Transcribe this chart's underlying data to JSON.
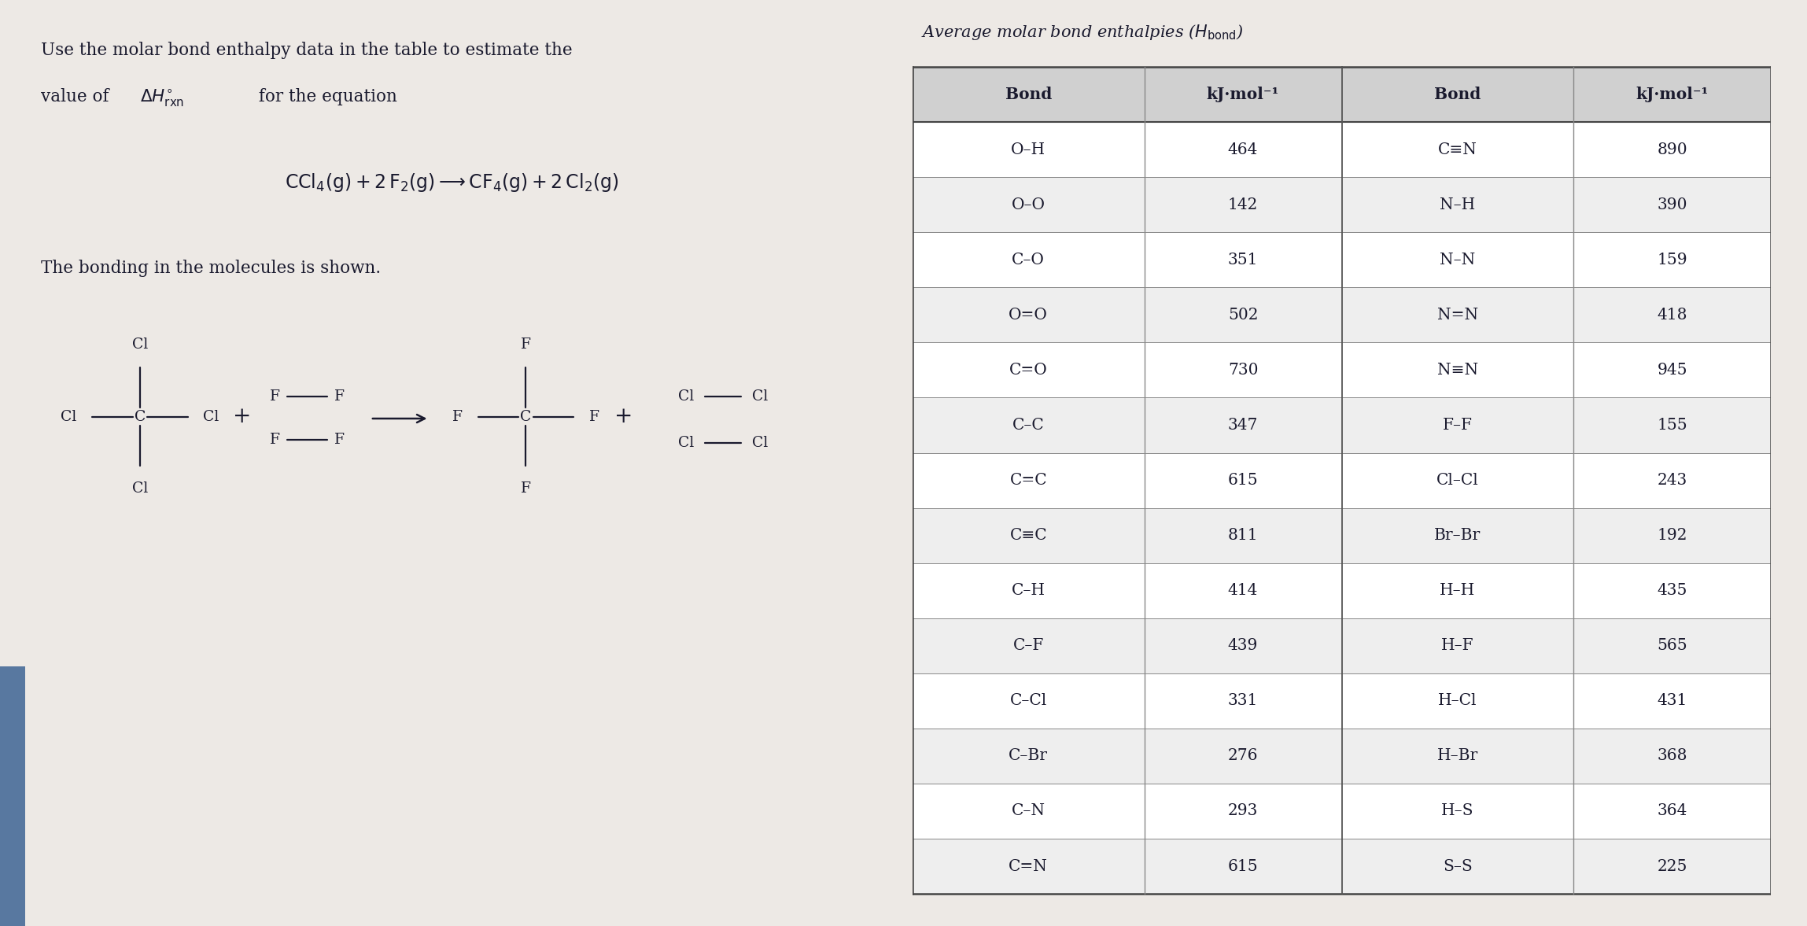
{
  "question_line1": "Use the molar bond enthalpy data in the table to estimate the",
  "question_line2": "value of ΔH°ᵣˣₙ for the equation",
  "bonding_text": "The bonding in the molecules is shown.",
  "table_title": "Average molar bond enthalpies (",
  "table_title2": "H",
  "table_title3": "bond",
  "table_title4": ")",
  "table_header_left": "Bond",
  "table_header_kj1": "kJ·mol⁻¹",
  "table_header_bond2": "Bond",
  "table_header_kj2": "kJ·mol⁻¹",
  "table_data_left": [
    [
      "O–H",
      "464"
    ],
    [
      "O–O",
      "142"
    ],
    [
      "C–O",
      "351"
    ],
    [
      "O=O",
      "502"
    ],
    [
      "C=O",
      "730"
    ],
    [
      "C–C",
      "347"
    ],
    [
      "C=C",
      "615"
    ],
    [
      "C≡C",
      "811"
    ],
    [
      "C–H",
      "414"
    ],
    [
      "C–F",
      "439"
    ],
    [
      "C–Cl",
      "331"
    ],
    [
      "C–Br",
      "276"
    ],
    [
      "C–N",
      "293"
    ],
    [
      "C=N",
      "615"
    ]
  ],
  "table_data_right": [
    [
      "C≡N",
      "890"
    ],
    [
      "N–H",
      "390"
    ],
    [
      "N–N",
      "159"
    ],
    [
      "N=N",
      "418"
    ],
    [
      "N≡N",
      "945"
    ],
    [
      "F–F",
      "155"
    ],
    [
      "Cl–Cl",
      "243"
    ],
    [
      "Br–Br",
      "192"
    ],
    [
      "H–H",
      "435"
    ],
    [
      "H–F",
      "565"
    ],
    [
      "H–Cl",
      "431"
    ],
    [
      "H–Br",
      "368"
    ],
    [
      "H–S",
      "364"
    ],
    [
      "S–S",
      "225"
    ]
  ],
  "bg_color": "#ede9e5",
  "text_color": "#1a1a2e",
  "table_white": "#ffffff",
  "table_light": "#eeeeee",
  "table_header_bg": "#d0d0d0",
  "blue_bar_color": "#5878a0"
}
